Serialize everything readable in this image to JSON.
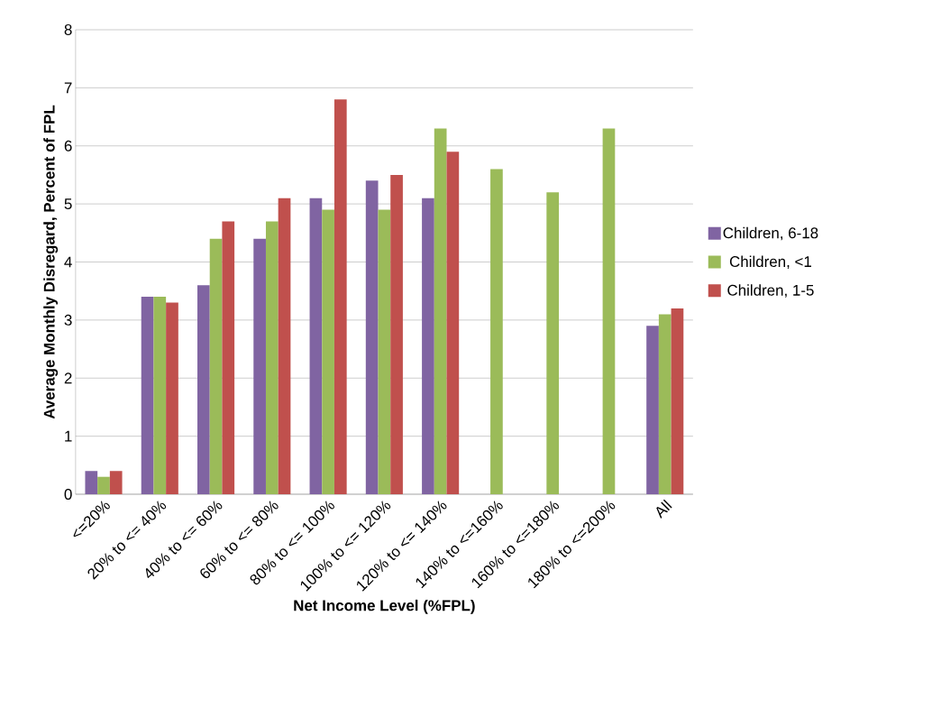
{
  "chart_data": {
    "type": "bar",
    "xlabel": "Net Income Level (%FPL)",
    "ylabel": "Average Monthly Disregard, Percent of FPL",
    "categories": [
      "<=20%",
      "20% to <= 40%",
      "40% to <= 60%",
      "60% to <= 80%",
      "80% to <= 100%",
      "100% to <= 120%",
      "120% to <= 140%",
      "140% to <=160%",
      "160% to <=180%",
      "180% to <=200%",
      "All"
    ],
    "series": [
      {
        "name": "Children, 6-18",
        "color": "#8064a2",
        "values": [
          0.4,
          3.4,
          3.6,
          4.4,
          5.1,
          5.4,
          5.1,
          null,
          null,
          null,
          2.9
        ]
      },
      {
        "name": "Children, <1",
        "color": "#9bbb59",
        "values": [
          0.3,
          3.4,
          4.4,
          4.7,
          4.9,
          4.9,
          6.3,
          5.6,
          5.2,
          6.3,
          3.1
        ]
      },
      {
        "name": "Children, 1-5",
        "color": "#c0504d",
        "values": [
          0.4,
          3.3,
          4.7,
          5.1,
          6.8,
          5.5,
          5.9,
          null,
          null,
          null,
          3.2
        ]
      }
    ],
    "ylim": [
      0,
      8
    ],
    "yticks": [
      0,
      1,
      2,
      3,
      4,
      5,
      6,
      7,
      8
    ],
    "grid": "y",
    "legend": "right"
  }
}
